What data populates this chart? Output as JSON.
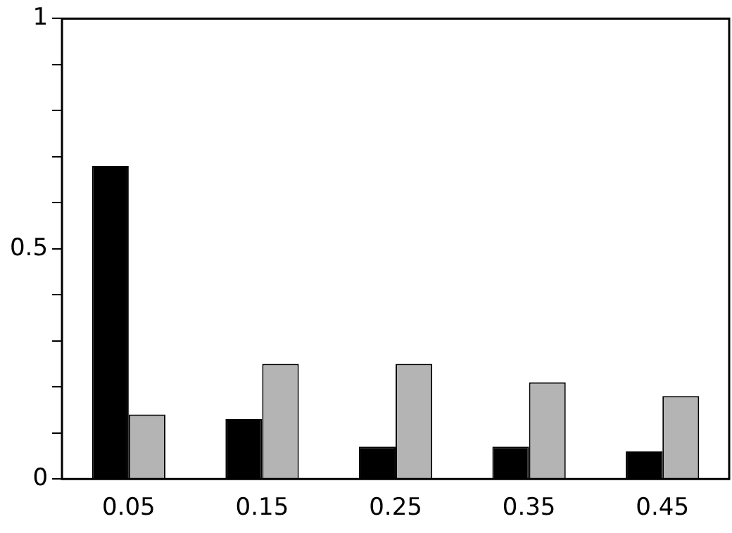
{
  "chart_data": {
    "type": "bar",
    "categories": [
      "0.05",
      "0.15",
      "0.25",
      "0.35",
      "0.45"
    ],
    "series": [
      {
        "color": "#000000",
        "values": [
          0.68,
          0.13,
          0.07,
          0.07,
          0.06
        ]
      },
      {
        "color": "#b4b4b4",
        "values": [
          0.14,
          0.25,
          0.25,
          0.21,
          0.18
        ]
      }
    ],
    "ylim": [
      0,
      1
    ],
    "yticks": [
      0,
      {
        "value": 0.1,
        "label": null
      },
      {
        "value": 0.2,
        "label": null
      },
      {
        "value": 0.3,
        "label": null
      },
      {
        "value": 0.4,
        "label": null
      },
      0.5,
      {
        "value": 0.6,
        "label": null
      },
      {
        "value": 0.7,
        "label": null
      },
      {
        "value": 0.8,
        "label": null
      },
      {
        "value": 0.9,
        "label": null
      },
      1
    ],
    "grid": false,
    "legend": false
  }
}
